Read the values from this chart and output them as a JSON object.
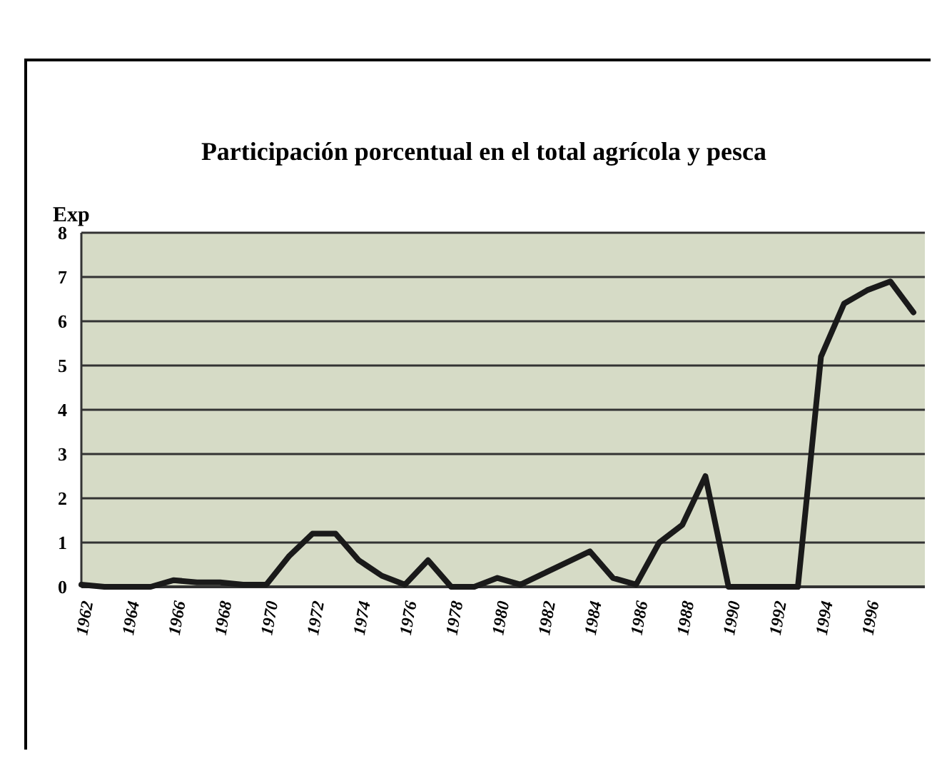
{
  "chart_data": {
    "type": "line",
    "title": "Participación porcentual en el total agrícola y pesca",
    "ylabel": "Exp",
    "categories": [
      "1962",
      null,
      "1964",
      null,
      "1966",
      null,
      "1968",
      null,
      "1970",
      null,
      "1972",
      null,
      "1974",
      null,
      "1976",
      null,
      "1978",
      null,
      "1980",
      null,
      "1982",
      null,
      "1984",
      null,
      "1986",
      null,
      "1988",
      null,
      "1990",
      null,
      "1992",
      null,
      "1994",
      null,
      "1996",
      null,
      null
    ],
    "series": [
      {
        "color": "#1a1a1a",
        "values": [
          0.05,
          0,
          0,
          0,
          0.15,
          0.1,
          0.1,
          0.05,
          0.05,
          0.7,
          1.2,
          1.2,
          0.6,
          0.25,
          0.05,
          0.6,
          0,
          0,
          0.2,
          0.05,
          0.3,
          0.55,
          0.8,
          0.2,
          0.05,
          1.0,
          1.4,
          2.5,
          0,
          0,
          0,
          0,
          5.2,
          6.4,
          6.7,
          6.9,
          6.2
        ]
      }
    ],
    "ylim": [
      0,
      8
    ],
    "yticks": [
      0,
      1,
      2,
      3,
      4,
      5,
      6,
      7,
      8
    ],
    "grid": "y",
    "marker": "none",
    "line_style": "solid"
  }
}
